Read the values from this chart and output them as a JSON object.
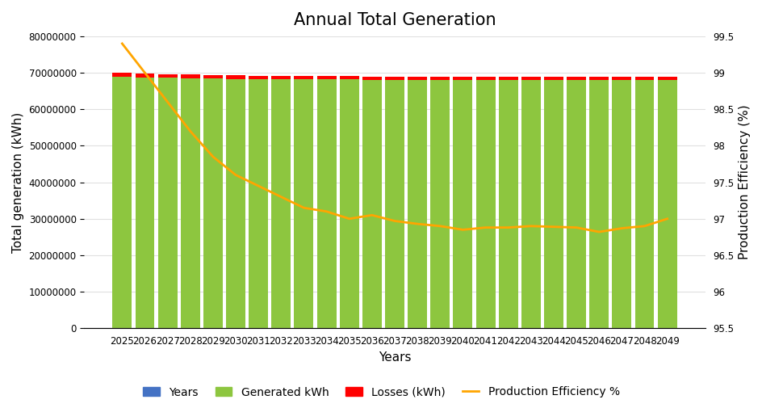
{
  "title": "Annual Total Generation",
  "years": [
    2025,
    2026,
    2027,
    2028,
    2029,
    2030,
    2031,
    2032,
    2033,
    2034,
    2035,
    2036,
    2037,
    2038,
    2039,
    2040,
    2041,
    2042,
    2043,
    2044,
    2045,
    2046,
    2047,
    2048,
    2049
  ],
  "generated_kwh": [
    68900000,
    68700000,
    68600000,
    68500000,
    68400000,
    68350000,
    68300000,
    68250000,
    68200000,
    68200000,
    68150000,
    68100000,
    68050000,
    68000000,
    68000000,
    67950000,
    67980000,
    67960000,
    67980000,
    67990000,
    67960000,
    67950000,
    68000000,
    68010000,
    68050000
  ],
  "losses_kwh": [
    1100000,
    1050000,
    1000000,
    980000,
    960000,
    950000,
    940000,
    930000,
    920000,
    920000,
    910000,
    910000,
    900000,
    900000,
    900000,
    895000,
    900000,
    895000,
    900000,
    900000,
    895000,
    895000,
    900000,
    900000,
    905000
  ],
  "production_efficiency": [
    99.4,
    99.0,
    98.6,
    98.2,
    97.85,
    97.6,
    97.45,
    97.3,
    97.15,
    97.1,
    97.0,
    97.05,
    96.97,
    96.93,
    96.9,
    96.85,
    96.88,
    96.88,
    96.9,
    96.89,
    96.88,
    96.82,
    96.87,
    96.9,
    97.0
  ],
  "bar_green_color": "#8DC63F",
  "bar_red_color": "#FF0000",
  "line_color": "#FFA500",
  "ylabel_left": "Total generation (kWh)",
  "ylabel_right": "Production Efficiency (%)",
  "xlabel": "Years",
  "ylim_left": [
    0,
    80000000
  ],
  "ylim_right": [
    95.5,
    99.5
  ],
  "yticks_left": [
    0,
    10000000,
    20000000,
    30000000,
    40000000,
    50000000,
    60000000,
    70000000,
    80000000
  ],
  "yticks_right": [
    95.5,
    96.0,
    96.5,
    97.0,
    97.5,
    98.0,
    98.5,
    99.0,
    99.5
  ],
  "legend_labels": [
    "Years",
    "Generated kWh",
    "Losses (kWh)",
    "Production Efficiency %"
  ],
  "bar_width": 0.85,
  "background_color": "#FFFFFF",
  "title_fontsize": 15,
  "axis_label_fontsize": 11,
  "tick_fontsize": 8.5,
  "legend_fontsize": 10,
  "grid_color": "#E0E0E0",
  "line_width": 2.0,
  "dummy_bar_color": "#4472C4"
}
